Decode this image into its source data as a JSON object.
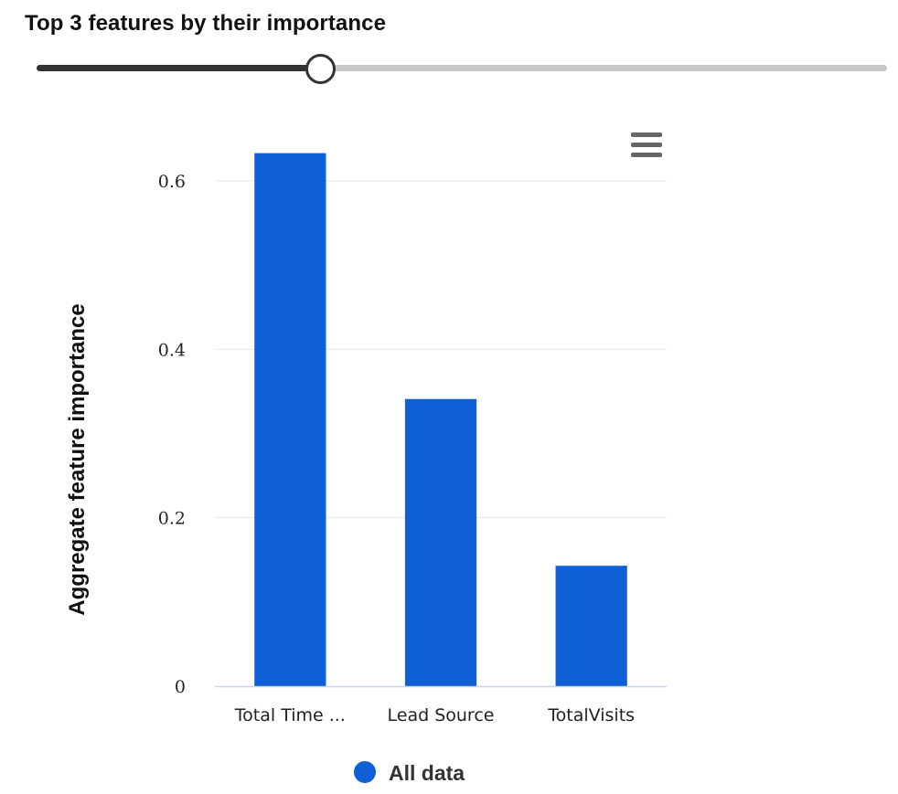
{
  "header": {
    "title": "Top 3 features by their importance"
  },
  "slider": {
    "fraction": 0.333
  },
  "menu": {
    "icon": "hamburger-menu-icon"
  },
  "chart_data": {
    "type": "bar",
    "categories": [
      "Total Time ...",
      "Lead Source",
      "TotalVisits"
    ],
    "series": [
      {
        "name": "All data",
        "values": [
          0.633,
          0.341,
          0.143
        ]
      }
    ],
    "title": "",
    "xlabel": "",
    "ylabel": "Aggregate feature importance",
    "ylim": [
      0,
      0.6
    ],
    "yticks": [
      0,
      0.2,
      0.4,
      0.6
    ],
    "ytick_labels": [
      "0",
      "0.2",
      "0.4",
      "0.6"
    ],
    "grid": true,
    "legend": "bottom-center",
    "colors": {
      "bar": "#0f5fd6",
      "grid": "#e6e6e6",
      "axis": "#ccd6eb"
    }
  }
}
